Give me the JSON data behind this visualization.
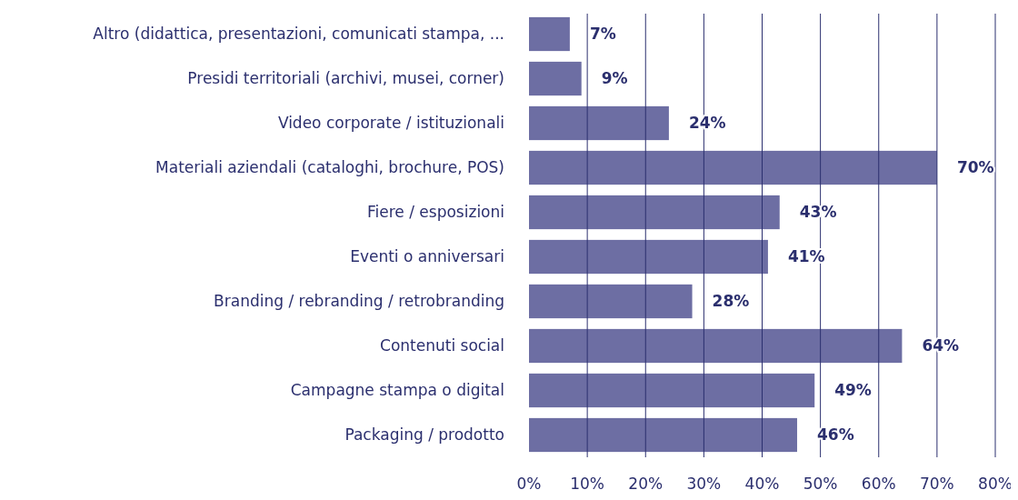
{
  "chart_data": {
    "type": "bar",
    "orientation": "horizontal",
    "categories": [
      "Altro (didattica, presentazioni, comunicati stampa, ...",
      "Presidi territoriali (archivi, musei, corner)",
      "Video corporate / istituzionali",
      "Materiali aziendali (cataloghi, brochure, POS)",
      "Fiere / esposizioni",
      "Eventi o anniversari",
      "Branding / rebranding / retrobranding",
      "Contenuti social",
      "Campagne stampa o digital",
      "Packaging / prodotto"
    ],
    "values": [
      7,
      9,
      24,
      70,
      43,
      41,
      28,
      64,
      49,
      46
    ],
    "color": "#6d6ea3",
    "value_labels": [
      "7%",
      "9%",
      "24%",
      "70%",
      "43%",
      "41%",
      "28%",
      "64%",
      "49%",
      "46%"
    ],
    "xlim": [
      0,
      80
    ],
    "xticks": [
      {
        "value": 0,
        "label": "0%"
      },
      {
        "value": 10,
        "label": "10%"
      },
      {
        "value": 20,
        "label": "20%"
      },
      {
        "value": 30,
        "label": "30%"
      },
      {
        "value": 40,
        "label": "40%"
      },
      {
        "value": 50,
        "label": "50%"
      },
      {
        "value": 60,
        "label": "60%"
      },
      {
        "value": 70,
        "label": "70%"
      },
      {
        "value": 80,
        "label": "80%"
      }
    ],
    "grid": "x"
  }
}
